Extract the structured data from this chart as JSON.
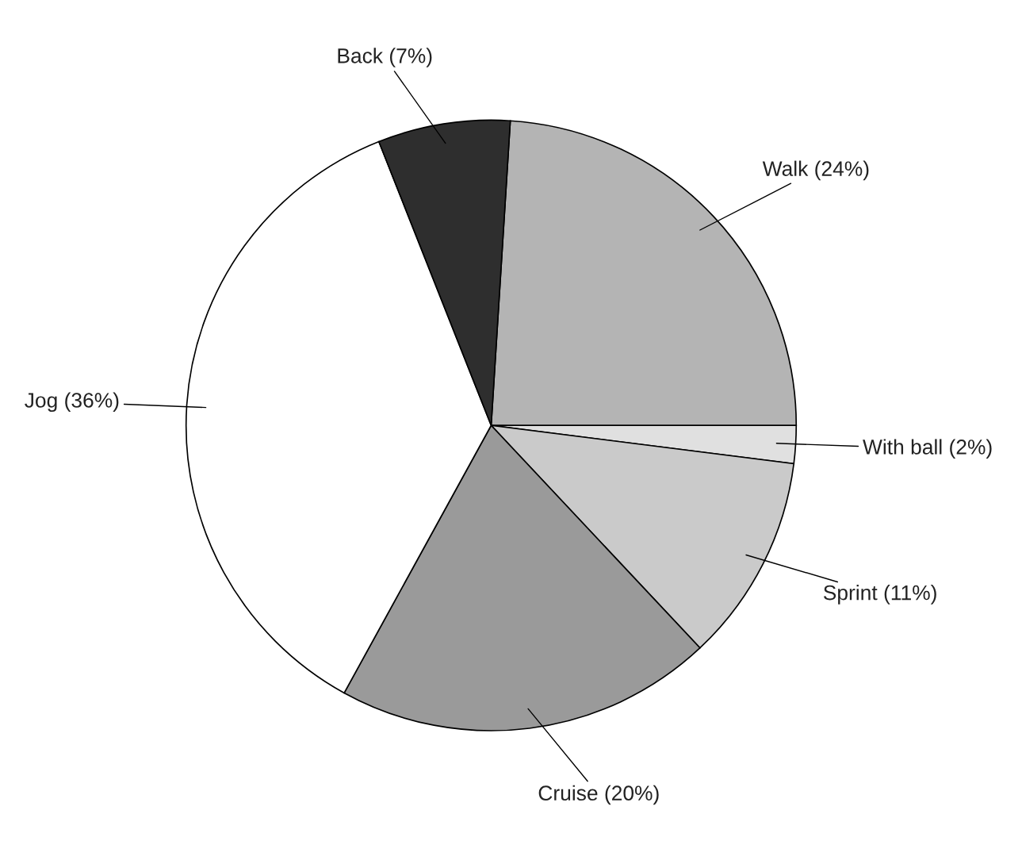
{
  "chart_data": {
    "type": "pie",
    "categories": [
      "Walk (24%)",
      "With ball (2%)",
      "Sprint (11%)",
      "Cruise (20%)",
      "Jog (36%)",
      "Back (7%)"
    ],
    "values": [
      24,
      2,
      11,
      20,
      36,
      7
    ],
    "colors": [
      "#b4b4b4",
      "#e0e0e0",
      "#cacaca",
      "#9a9a9a",
      "#ffffff",
      "#2e2e2e"
    ]
  }
}
